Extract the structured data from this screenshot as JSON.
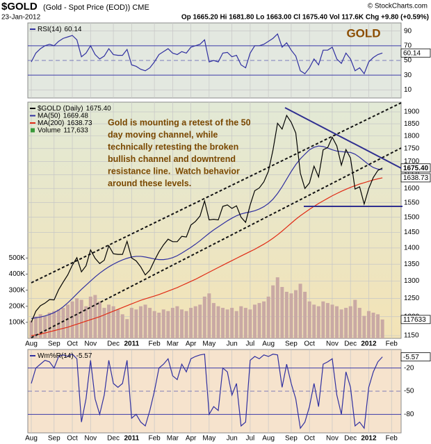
{
  "header": {
    "title": "$GOLD",
    "subtitle": "(Gold - Spot Price (EOD)) CME",
    "source": "© StockCharts.com",
    "date": "23-Jan-2012",
    "quote": "Op 1665.20 Hi 1681.80 Lo 1663.00 Cl 1675.40 Vol 117.6K Chg +9.80 (+0.59%)"
  },
  "chart_data": [
    {
      "type": "line",
      "annotation": "GOLD",
      "ylim": [
        -1,
        101
      ],
      "yticks": [
        90,
        70,
        50,
        30,
        10
      ],
      "levels": [
        70,
        30
      ],
      "midline": 50,
      "series": [
        {
          "name": "RSI(14)",
          "color": "#2f2fa0",
          "legend_value": "60.14",
          "last_label": "60.14",
          "values": [
            48,
            60,
            66,
            70,
            72,
            70,
            76,
            80,
            82,
            84,
            78,
            55,
            60,
            70,
            58,
            52,
            56,
            66,
            58,
            57,
            57,
            65,
            44,
            42,
            38,
            36,
            40,
            48,
            58,
            62,
            66,
            60,
            58,
            62,
            60,
            68,
            70,
            72,
            78,
            48,
            50,
            48,
            60,
            61,
            55,
            57,
            44,
            40,
            60,
            70,
            70,
            72,
            76,
            80,
            86,
            68,
            74,
            64,
            56,
            36,
            32,
            40,
            52,
            44,
            64,
            64,
            68,
            52,
            46,
            60,
            52,
            36,
            40,
            32,
            48,
            54,
            58,
            60.14,
            null,
            null
          ]
        }
      ]
    },
    {
      "type": "line",
      "log_scale": true,
      "annotation": [
        "Gold is mounting a retest of the 50",
        "day moving channel, while",
        "technically retesting the broken",
        "bullish channel and downtrend",
        "resistance line.  Watch behavior",
        "around these levels."
      ],
      "categories": [
        "Aug",
        null,
        null,
        null,
        null,
        "Sep",
        null,
        null,
        null,
        "Oct",
        null,
        null,
        null,
        "Nov",
        null,
        null,
        null,
        null,
        "Dec",
        null,
        null,
        null,
        "2011",
        null,
        null,
        null,
        null,
        "Feb",
        null,
        null,
        null,
        "Mar",
        null,
        null,
        null,
        "Apr",
        null,
        null,
        null,
        "May",
        null,
        null,
        null,
        null,
        "Jun",
        null,
        null,
        null,
        "Jul",
        null,
        null,
        null,
        "Aug",
        null,
        null,
        null,
        null,
        "Sep",
        null,
        null,
        null,
        "Oct",
        null,
        null,
        null,
        null,
        "Nov",
        null,
        null,
        null,
        "Dec",
        null,
        null,
        null,
        "2012",
        null,
        null,
        null,
        null,
        "Feb"
      ],
      "ylim": [
        1143,
        1942
      ],
      "yticks": [
        1150,
        1200,
        1250,
        1300,
        1350,
        1400,
        1450,
        1500,
        1550,
        1600,
        1650,
        1700,
        1750,
        1800,
        1850,
        1900
      ],
      "y2lim": [
        0,
        1470000
      ],
      "y2ticks": [
        {
          "value": 100000,
          "label": "100K"
        },
        {
          "value": 200000,
          "label": "200K"
        },
        {
          "value": 300000,
          "label": "300K"
        },
        {
          "value": 400000,
          "label": "400K"
        },
        {
          "value": 500000,
          "label": "500K"
        }
      ],
      "series": [
        {
          "name": "Volume",
          "type": "bar",
          "axis": "y2",
          "color": "#c9a9a4",
          "legend_value": "117,633",
          "last_label": "117633",
          "values": [
            110000,
            135000,
            150000,
            140000,
            160000,
            170000,
            180000,
            190000,
            210000,
            230000,
            250000,
            240000,
            200000,
            260000,
            270000,
            230000,
            190000,
            210000,
            200000,
            180000,
            150000,
            120000,
            190000,
            180000,
            200000,
            210000,
            190000,
            170000,
            160000,
            180000,
            170000,
            190000,
            200000,
            180000,
            170000,
            190000,
            200000,
            210000,
            260000,
            280000,
            220000,
            200000,
            190000,
            180000,
            190000,
            170000,
            200000,
            190000,
            180000,
            210000,
            220000,
            230000,
            260000,
            330000,
            380000,
            320000,
            290000,
            280000,
            300000,
            340000,
            290000,
            230000,
            210000,
            200000,
            230000,
            220000,
            210000,
            200000,
            180000,
            190000,
            200000,
            240000,
            190000,
            140000,
            170000,
            160000,
            150000,
            117633,
            null,
            null
          ]
        },
        {
          "name": "MA(200)",
          "color": "#e02a14",
          "legend_value": "1638.73",
          "last_label": "1638.73",
          "values": [
            1150,
            1152,
            1154,
            1157,
            1160,
            1163,
            1166,
            1169,
            1172,
            1176,
            1180,
            1184,
            1188,
            1192,
            1196,
            1200,
            1205,
            1210,
            1215,
            1220,
            1225,
            1230,
            1235,
            1240,
            1245,
            1249,
            1253,
            1257,
            1261,
            1266,
            1271,
            1276,
            1281,
            1287,
            1293,
            1299,
            1305,
            1312,
            1319,
            1326,
            1333,
            1340,
            1347,
            1354,
            1361,
            1368,
            1375,
            1382,
            1389,
            1396,
            1404,
            1412,
            1421,
            1431,
            1442,
            1454,
            1467,
            1480,
            1493,
            1505,
            1516,
            1527,
            1537,
            1547,
            1556,
            1565,
            1574,
            1582,
            1590,
            1597,
            1604,
            1610,
            1616,
            1621,
            1626,
            1631,
            1635,
            1638.73,
            null,
            null
          ]
        },
        {
          "name": "MA(50)",
          "color": "#2f2fa0",
          "legend_value": "1669.48",
          "values": [
            1195,
            1197,
            1199,
            1202,
            1206,
            1211,
            1218,
            1227,
            1238,
            1250,
            1263,
            1276,
            1288,
            1300,
            1312,
            1323,
            1333,
            1342,
            1350,
            1357,
            1363,
            1368,
            1372,
            1374,
            1374,
            1372,
            1369,
            1366,
            1364,
            1364,
            1366,
            1370,
            1376,
            1384,
            1393,
            1402,
            1412,
            1423,
            1435,
            1447,
            1458,
            1468,
            1478,
            1488,
            1497,
            1505,
            1511,
            1515,
            1518,
            1522,
            1528,
            1536,
            1547,
            1562,
            1582,
            1606,
            1634,
            1662,
            1688,
            1710,
            1728,
            1745,
            1755,
            1760,
            1758,
            1752,
            1745,
            1740,
            1738,
            1736,
            1735,
            1728,
            1716,
            1702,
            1688,
            1677,
            1671,
            1669.48,
            null,
            null
          ]
        },
        {
          "name": "$GOLD (Daily)",
          "color": "#000000",
          "legend_value": "1675.40",
          "last_label": "1675.40",
          "values": [
            1185,
            1215,
            1230,
            1237,
            1247,
            1246,
            1275,
            1297,
            1318,
            1347,
            1370,
            1327,
            1345,
            1394,
            1368,
            1352,
            1362,
            1407,
            1382,
            1380,
            1380,
            1421,
            1369,
            1360,
            1342,
            1318,
            1332,
            1361,
            1388,
            1410,
            1428,
            1420,
            1420,
            1437,
            1435,
            1474,
            1486,
            1504,
            1556,
            1491,
            1493,
            1491,
            1537,
            1542,
            1530,
            1539,
            1500,
            1483,
            1542,
            1592,
            1602,
            1624,
            1663,
            1744,
            1852,
            1828,
            1885,
            1856,
            1812,
            1656,
            1600,
            1620,
            1682,
            1642,
            1745,
            1754,
            1795,
            1760,
            1686,
            1746,
            1713,
            1598,
            1606,
            1545,
            1600,
            1640,
            1666,
            1675.4,
            null,
            null
          ]
        }
      ]
    },
    {
      "type": "line",
      "categories": [
        "Aug",
        null,
        null,
        null,
        null,
        "Sep",
        null,
        null,
        null,
        "Oct",
        null,
        null,
        null,
        "Nov",
        null,
        null,
        null,
        null,
        "Dec",
        null,
        null,
        null,
        "2011",
        null,
        null,
        null,
        null,
        "Feb",
        null,
        null,
        null,
        "Mar",
        null,
        null,
        null,
        "Apr",
        null,
        null,
        null,
        "May",
        null,
        null,
        null,
        null,
        "Jun",
        null,
        null,
        null,
        "Jul",
        null,
        null,
        null,
        "Aug",
        null,
        null,
        null,
        null,
        "Sep",
        null,
        null,
        null,
        "Oct",
        null,
        null,
        null,
        null,
        "Nov",
        null,
        null,
        null,
        "Dec",
        null,
        null,
        null,
        "2012",
        null,
        null,
        null,
        null,
        "Feb"
      ],
      "ylim": [
        -104,
        4
      ],
      "yticks": [
        -20,
        -50,
        -80
      ],
      "levels": [
        -20,
        -80
      ],
      "midline": -50,
      "series": [
        {
          "name": "Wm%R(14)",
          "color": "#2f2fa0",
          "legend_value": "-5.57",
          "last_label": "-5.57",
          "values": [
            -40,
            -20,
            -15,
            -10,
            -12,
            -20,
            -5,
            -3,
            -5,
            -2,
            -8,
            -90,
            -60,
            -10,
            -60,
            -80,
            -55,
            -10,
            -40,
            -45,
            -40,
            -10,
            -85,
            -80,
            -90,
            -95,
            -75,
            -50,
            -20,
            -15,
            -8,
            -30,
            -35,
            -15,
            -25,
            -8,
            -5,
            -3,
            -2,
            -80,
            -70,
            -75,
            -20,
            -25,
            -55,
            -40,
            -95,
            -90,
            -10,
            -5,
            -8,
            -3,
            -5,
            -2,
            -3,
            -45,
            -15,
            -40,
            -60,
            -98,
            -90,
            -70,
            -40,
            -70,
            -15,
            -12,
            -8,
            -55,
            -80,
            -25,
            -45,
            -95,
            -90,
            -98,
            -45,
            -25,
            -12,
            -5.57,
            null,
            null
          ]
        }
      ]
    }
  ]
}
